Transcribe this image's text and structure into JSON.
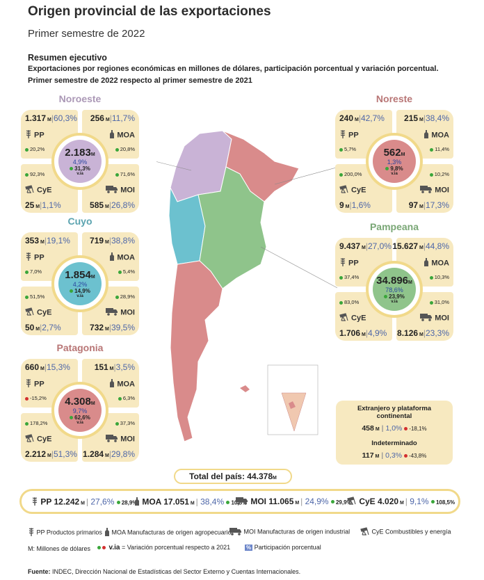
{
  "header": {
    "title": "Origen provincial de las exportaciones",
    "subtitle": "Primer semestre de 2022",
    "summary_title": "Resumen ejecutivo",
    "summary_line1": "Exportaciones por regiones económicas en millones de dólares, participación porcentual y variación porcentual.",
    "summary_line2": "Primer semestre de 2022 respecto al primer semestre de 2021"
  },
  "colors": {
    "noroeste": "#c9b3d6",
    "noreste": "#d98b8b",
    "cuyo": "#6cc1cf",
    "pampeana": "#8fc48b",
    "patagonia": "#d98b8b",
    "quad": "#f7e9c0",
    "ring": "#f1d98a",
    "pct": "#4d66a8",
    "positive": "#3aa63a",
    "negative": "#d32f2f"
  },
  "chart_data": {
    "type": "table",
    "unit_label": "M",
    "regions": [
      {
        "key": "noroeste",
        "name": "Noroeste",
        "total": "2.183",
        "share": "4,9%",
        "var": "31,3%",
        "via": "v.ia",
        "PP": {
          "value": "1.317",
          "share": "60,3%",
          "var": "20,2%",
          "sign": "+"
        },
        "MOA": {
          "value": "256",
          "share": "11,7%",
          "var": "20,8%",
          "sign": "+"
        },
        "CyE": {
          "value": "25",
          "share": "1,1%",
          "var": "92,3%",
          "sign": "+"
        },
        "MOI": {
          "value": "585",
          "share": "26,8%",
          "var": "71,6%",
          "sign": "+"
        }
      },
      {
        "key": "noreste",
        "name": "Noreste",
        "total": "562",
        "share": "1,3%",
        "var": "9,8%",
        "via": "v.ia",
        "PP": {
          "value": "240",
          "share": "42,7%",
          "var": "5,7%",
          "sign": "+"
        },
        "MOA": {
          "value": "215",
          "share": "38,4%",
          "var": "11,4%",
          "sign": "+"
        },
        "CyE": {
          "value": "9",
          "share": "1,6%",
          "var": "200,0%",
          "sign": "+"
        },
        "MOI": {
          "value": "97",
          "share": "17,3%",
          "var": "10,2%",
          "sign": "+"
        }
      },
      {
        "key": "cuyo",
        "name": "Cuyo",
        "total": "1.854",
        "share": "4,2%",
        "var": "14,9%",
        "via": "v.ia",
        "PP": {
          "value": "353",
          "share": "19,1%",
          "var": "7,0%",
          "sign": "+"
        },
        "MOA": {
          "value": "719",
          "share": "38,8%",
          "var": "5,4%",
          "sign": "+"
        },
        "CyE": {
          "value": "50",
          "share": "2,7%",
          "var": "51,5%",
          "sign": "+"
        },
        "MOI": {
          "value": "732",
          "share": "39,5%",
          "var": "28,9%",
          "sign": "+"
        }
      },
      {
        "key": "pampeana",
        "name": "Pampeana",
        "total": "34.896",
        "share": "78,6%",
        "var": "23,9%",
        "via": "v.ia",
        "PP": {
          "value": "9.437",
          "share": "27,0%",
          "var": "37,4%",
          "sign": "+"
        },
        "MOA": {
          "value": "15.627",
          "share": "44,8%",
          "var": "10,3%",
          "sign": "+"
        },
        "CyE": {
          "value": "1.706",
          "share": "4,9%",
          "var": "83,0%",
          "sign": "+"
        },
        "MOI": {
          "value": "8.126",
          "share": "23,3%",
          "var": "31,0%",
          "sign": "+"
        }
      },
      {
        "key": "patagonia",
        "name": "Patagonia",
        "total": "4.308",
        "share": "9,7%",
        "var": "62,6%",
        "via": "v.ia",
        "PP": {
          "value": "660",
          "share": "15,3%",
          "var": "-15,2%",
          "sign": "-"
        },
        "MOA": {
          "value": "151",
          "share": "3,5%",
          "var": "6,3%",
          "sign": "+"
        },
        "CyE": {
          "value": "2.212",
          "share": "51,3%",
          "var": "178,2%",
          "sign": "+"
        },
        "MOI": {
          "value": "1.284",
          "share": "29,8%",
          "var": "37,3%",
          "sign": "+"
        }
      }
    ],
    "extra": {
      "title1": "Extranjero y plataforma continental",
      "value1": "458",
      "share1": "1,0%",
      "var1": "-18,1%",
      "title2": "Indeterminado",
      "value2": "117",
      "share2": "0,3%",
      "var2": "-43,8%"
    },
    "total": {
      "label": "Total del país:",
      "value": "44.378",
      "unit": "M"
    },
    "rubros": [
      {
        "code": "PP",
        "value": "12.242",
        "share": "27,6%",
        "var": "28,9%"
      },
      {
        "code": "MOA",
        "value": "17.051",
        "share": "38,4%",
        "var": "10,5%"
      },
      {
        "code": "MOI",
        "value": "11.065",
        "share": "24,9%",
        "var": "29,9%"
      },
      {
        "code": "CyE",
        "value": "4.020",
        "share": "9,1%",
        "var": "108,5%"
      }
    ]
  },
  "legend": {
    "pp": "PP Productos primarios",
    "moa": "MOA Manufacturas de origen agropecuario",
    "moi": "MOI Manufacturas de origen industrial",
    "cye": "CyE Combustibles y energía",
    "m": "M: Millones de dólares",
    "via": "v.ia",
    "via_eq": "= Variación porcentual respecto a 2021",
    "pct_symbol": "%",
    "pct": "Participación porcentual"
  },
  "source": {
    "label": "Fuente:",
    "text": "INDEC, Dirección Nacional de Estadísticas del Sector Externo y Cuentas Internacionales."
  }
}
